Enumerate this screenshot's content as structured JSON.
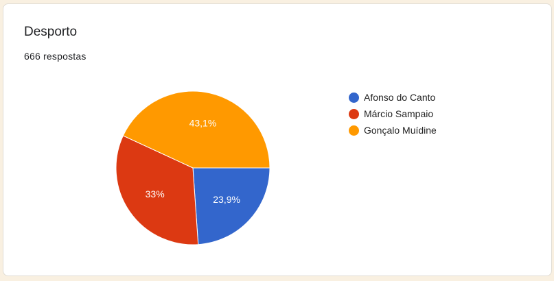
{
  "title": "Desporto",
  "responses": "666 respostas",
  "chart_data": {
    "type": "pie",
    "categories": [
      "Afonso do Canto",
      "Márcio Sampaio",
      "Gonçalo Muídine"
    ],
    "values": [
      23.9,
      33,
      43.1
    ],
    "labels": [
      "23,9%",
      "33%",
      "43,1%"
    ],
    "colors": [
      "#3366cc",
      "#dc3912",
      "#ff9900"
    ],
    "legend": "right"
  }
}
